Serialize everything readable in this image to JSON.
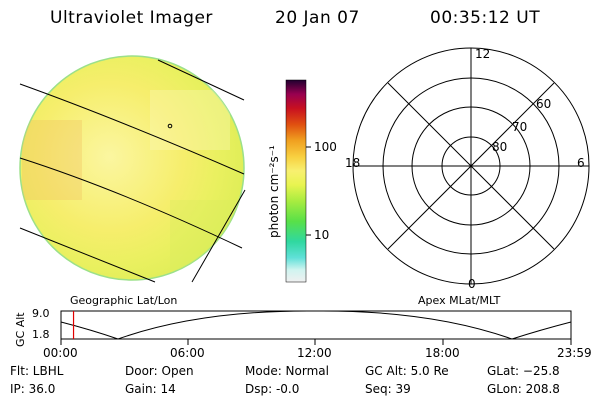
{
  "header": {
    "instrument": "Ultraviolet Imager",
    "date": "20 Jan 07",
    "time": "00:35:12 UT"
  },
  "colorbar": {
    "unit_label": "photon cm⁻²s⁻¹",
    "tick_100": "100",
    "tick_10": "10"
  },
  "polar_plot": {
    "label_top": "12",
    "label_left": "18",
    "label_right": "6",
    "label_bottom": "0",
    "ring_60": "60",
    "ring_70": "70",
    "ring_80": "80"
  },
  "timeline": {
    "left_title": "Geographic Lat/Lon",
    "right_title": "Apex MLat/MLT",
    "ylabel": "GC Alt",
    "y_top": "9.0",
    "y_bottom": "1.8",
    "ticks": [
      "00:00",
      "06:00",
      "12:00",
      "18:00",
      "23:59"
    ],
    "marker_hours": 0.59
  },
  "info": {
    "flt": "Flt: LBHL",
    "ip": "IP: 36.0",
    "door": "Door: Open",
    "gain": "Gain: 14",
    "mode": "Mode: Normal",
    "dsp": "Dsp:    -0.0",
    "gcalt": "GC Alt: 5.0 Re",
    "seq": "Seq: 39",
    "glat": "GLat: −25.8",
    "glon": "GLon: 208.8"
  },
  "colors": {
    "disk_fill": "#f4f07a",
    "colorbar_stops": [
      "#e0e0e0",
      "#a0f0e8",
      "#40d8d0",
      "#30d890",
      "#70e040",
      "#c8f040",
      "#f8f060",
      "#f8d040",
      "#f0a020",
      "#e05010",
      "#c01010",
      "#900040",
      "#300040"
    ]
  }
}
